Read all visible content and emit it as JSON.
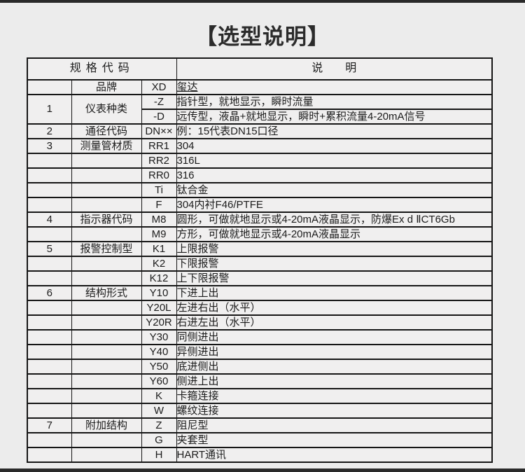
{
  "page": {
    "title": "【选型说明】",
    "background_color": "#ececec",
    "bar_color": "#2a2a2a",
    "table_border_color": "#161616",
    "cell_background_color": "#f0efef"
  },
  "table": {
    "header": {
      "spec_code": "规格代码",
      "description": "说　　明"
    },
    "rows": [
      {
        "num": "",
        "cat": "品牌",
        "code": "XD",
        "desc": "玺达",
        "desc_underline": true
      },
      {
        "num": "1",
        "cat": "仪表种类",
        "code": "-Z",
        "desc": "指针型，就地显示，瞬时流量",
        "rowspan": 2
      },
      {
        "merged": true,
        "code": "-D",
        "desc": "远传型，液晶+就地显示，瞬时+累积流量4-20mA信号"
      },
      {
        "num": "2",
        "cat": "通径代码",
        "code": "DN××",
        "desc": "例：15代表DN15口径"
      },
      {
        "num": "3",
        "cat": "测量管材质",
        "code": "RR1",
        "desc": "304"
      },
      {
        "num": "",
        "cat": "",
        "code": "RR2",
        "desc": "316L"
      },
      {
        "num": "",
        "cat": "",
        "code": "RR0",
        "desc": "316"
      },
      {
        "num": "",
        "cat": "",
        "code": "Ti",
        "desc": "钛合金"
      },
      {
        "num": "",
        "cat": "",
        "code": "F",
        "desc": "304内衬F46/PTFE"
      },
      {
        "num": "4",
        "cat": "指示器代码",
        "code": "M8",
        "desc": "圆形，可做就地显示或4-20mA液晶显示，防爆Ex d ⅡCT6Gb"
      },
      {
        "num": "",
        "cat": "",
        "code": "M9",
        "desc": "方形，可做就地显示或4-20mA液晶显示"
      },
      {
        "num": "5",
        "cat": "报警控制型",
        "code": "K1",
        "desc": "上限报警"
      },
      {
        "num": "",
        "cat": "",
        "code": "K2",
        "desc": "下限报警"
      },
      {
        "num": "",
        "cat": "",
        "code": "K12",
        "desc": "上下限报警"
      },
      {
        "num": "6",
        "cat": "结构形式",
        "code": "Y10",
        "desc": "下进上出"
      },
      {
        "num": "",
        "cat": "",
        "code": "Y20L",
        "desc": "左进右出（水平）"
      },
      {
        "num": "",
        "cat": "",
        "code": "Y20R",
        "desc": "右进左出（水平）"
      },
      {
        "num": "",
        "cat": "",
        "code": "Y30",
        "desc": "同侧进出"
      },
      {
        "num": "",
        "cat": "",
        "code": "Y40",
        "desc": "异侧进出"
      },
      {
        "num": "",
        "cat": "",
        "code": "Y50",
        "desc": "底进侧出"
      },
      {
        "num": "",
        "cat": "",
        "code": "Y60",
        "desc": "侧进上出"
      },
      {
        "num": "",
        "cat": "",
        "code": "K",
        "desc": "卡箍连接"
      },
      {
        "num": "",
        "cat": "",
        "code": "W",
        "desc": "螺纹连接"
      },
      {
        "num": "7",
        "cat": "附加结构",
        "code": "Z",
        "desc": "阻尼型"
      },
      {
        "num": "",
        "cat": "",
        "code": "G",
        "desc": "夹套型"
      },
      {
        "num": "",
        "cat": "",
        "code": "H",
        "desc": "HART通讯"
      }
    ]
  }
}
